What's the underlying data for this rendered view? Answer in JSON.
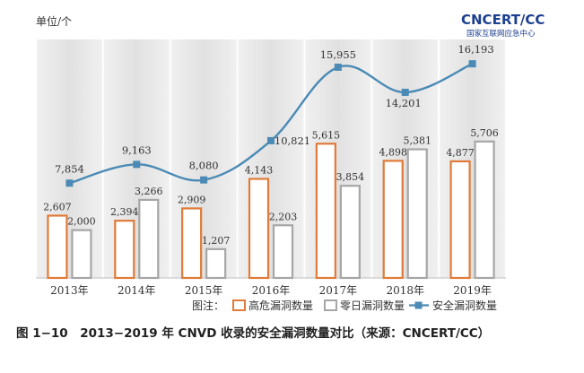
{
  "logo": {
    "name": "CNCERT/CC",
    "subtitle": "国家互联网应急中心"
  },
  "chart_data": {
    "type": "bar",
    "unit_label": "单位/个",
    "categories": [
      "2013年",
      "2014年",
      "2015年",
      "2016年",
      "2017年",
      "2018年",
      "2019年"
    ],
    "series": [
      {
        "name": "高危漏洞数量",
        "kind": "bar",
        "color": "#e07b39",
        "values": [
          2607,
          2394,
          2909,
          4143,
          5615,
          4898,
          4877
        ]
      },
      {
        "name": "零日漏洞数量",
        "kind": "bar",
        "color": "#a6a6a6",
        "values": [
          2000,
          3266,
          1207,
          2203,
          3854,
          5381,
          5706
        ]
      },
      {
        "name": "安全漏洞数量",
        "kind": "line",
        "color": "#4a8ab5",
        "values": [
          7854,
          9163,
          8080,
          10821,
          15955,
          14201,
          16193
        ]
      }
    ],
    "value_labels": {
      "高危漏洞数量": [
        "2,607",
        "2,394",
        "2,909",
        "4,143",
        "5,615",
        "4,898",
        "4,877"
      ],
      "零日漏洞数量": [
        "2,000",
        "3,266",
        "1,207",
        "2,203",
        "3,854",
        "5,381",
        "5,706"
      ],
      "安全漏洞数量": [
        "7,854",
        "9,163",
        "8,080",
        "10,821",
        "15,955",
        "14,201",
        "16,193"
      ]
    },
    "legend": {
      "title": "图注：",
      "placement": "bottom"
    },
    "grid": "vertical bands",
    "ylim": [
      0,
      17500
    ]
  },
  "caption": "图 1−10　2013−2019 年 CNVD 收录的安全漏洞数量对比（来源：CNCERT/CC）"
}
